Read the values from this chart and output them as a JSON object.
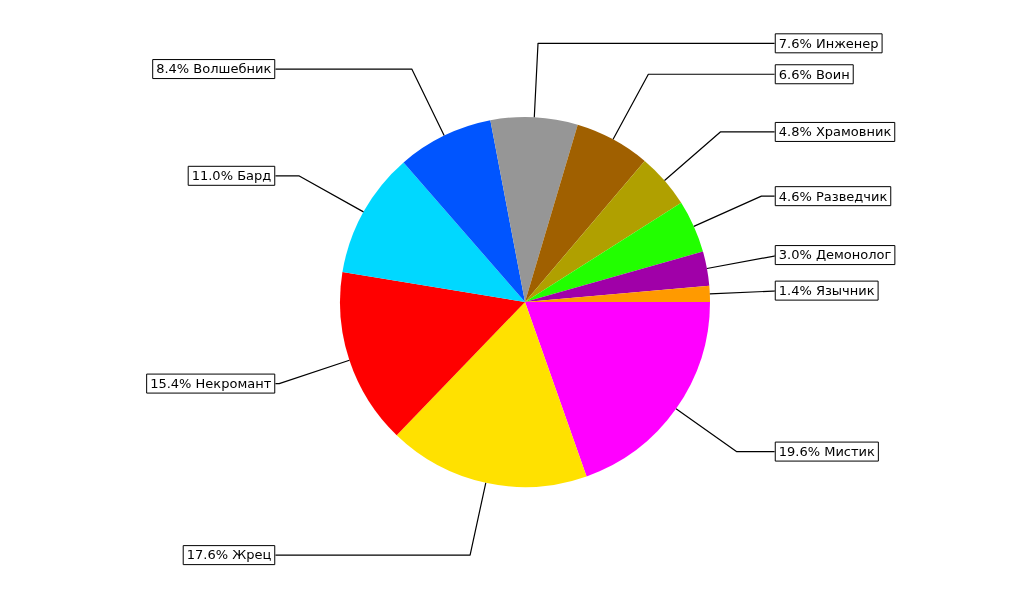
{
  "chart_data": {
    "type": "pie",
    "categories": [
      "Мистик",
      "Жрец",
      "Некромант",
      "Бард",
      "Волшебник",
      "Инженер",
      "Воин",
      "Храмовник",
      "Разведчик",
      "Демонолог",
      "Язычник"
    ],
    "values": [
      19.6,
      17.6,
      15.4,
      11.0,
      8.4,
      7.6,
      6.6,
      4.8,
      4.6,
      3.0,
      1.4
    ],
    "value_labels": [
      "19.6%",
      "17.6%",
      "15.4%",
      "11.0%",
      "8.4%",
      "7.6%",
      "6.6%",
      "4.8%",
      "4.6%",
      "3.0%",
      "1.4%"
    ],
    "colors": [
      "#ff00ff",
      "#ffe100",
      "#ff0000",
      "#00d8ff",
      "#0055ff",
      "#969696",
      "#a06000",
      "#b0a000",
      "#22ff00",
      "#a000a8",
      "#ff9a00"
    ],
    "legend": false
  }
}
